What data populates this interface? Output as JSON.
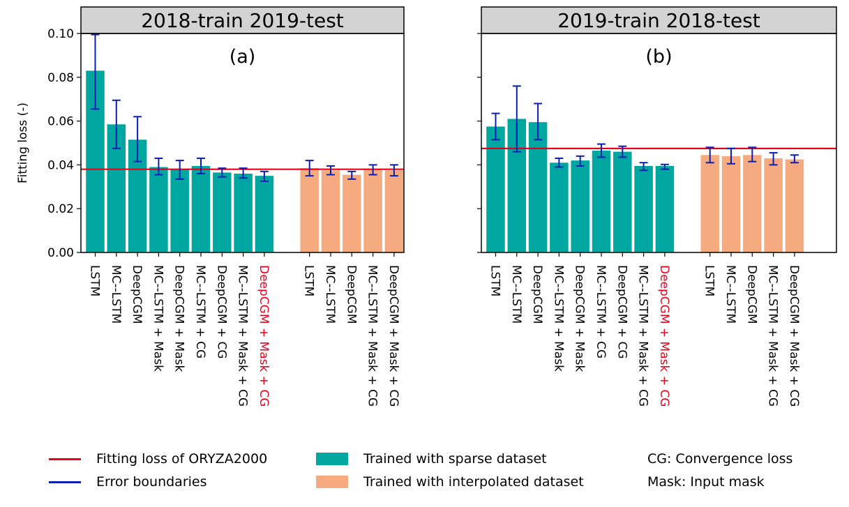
{
  "chart_data": [
    {
      "type": "bar",
      "panel_header": "2018-train 2019-test",
      "panel_label": "(a)",
      "ylabel": "Fitting loss (-)",
      "ylim": [
        0,
        0.1
      ],
      "yticks": [
        "0.00",
        "0.02",
        "0.04",
        "0.06",
        "0.08",
        "0.10"
      ],
      "reference_line": 0.038,
      "groups": [
        {
          "name": "Trained with sparse dataset",
          "categories": [
            "LSTM",
            "MC--LSTM",
            "DeepCGM",
            "MC--LSTM + Mask",
            "DeepCGM + Mask",
            "MC--LSTM + CG",
            "DeepCGM + CG",
            "MC--LSTM + Mask + CG",
            "DeepCGM + Mask + CG"
          ],
          "values": [
            0.083,
            0.0585,
            0.0515,
            0.039,
            0.038,
            0.0395,
            0.0365,
            0.036,
            0.035
          ],
          "err_low": [
            0.0655,
            0.0475,
            0.0415,
            0.0355,
            0.0335,
            0.036,
            0.0345,
            0.034,
            0.0325
          ],
          "err_high": [
            0.0995,
            0.0695,
            0.062,
            0.043,
            0.042,
            0.043,
            0.0385,
            0.0385,
            0.037
          ],
          "highlight": [
            false,
            false,
            false,
            false,
            false,
            false,
            false,
            false,
            true
          ]
        },
        {
          "name": "Trained with interpolated dataset",
          "categories": [
            "LSTM",
            "MC--LSTM",
            "DeepCGM",
            "MC--LSTM + Mask + CG",
            "DeepCGM + Mask + CG"
          ],
          "values": [
            0.0385,
            0.0375,
            0.0355,
            0.038,
            0.0375
          ],
          "err_low": [
            0.035,
            0.0355,
            0.0335,
            0.0355,
            0.035
          ],
          "err_high": [
            0.042,
            0.0395,
            0.037,
            0.04,
            0.04
          ],
          "highlight": [
            false,
            false,
            false,
            false,
            false
          ]
        }
      ]
    },
    {
      "type": "bar",
      "panel_header": "2019-train 2018-test",
      "panel_label": "(b)",
      "ylabel": "",
      "ylim": [
        0,
        0.1
      ],
      "yticks": [
        "",
        "",
        "",
        "",
        "",
        ""
      ],
      "reference_line": 0.0475,
      "groups": [
        {
          "name": "Trained with sparse dataset",
          "categories": [
            "LSTM",
            "MC--LSTM",
            "DeepCGM",
            "MC--LSTM + Mask",
            "DeepCGM + Mask",
            "MC--LSTM + CG",
            "DeepCGM + CG",
            "MC--LSTM + Mask + CG",
            "DeepCGM + Mask + CG"
          ],
          "values": [
            0.0575,
            0.061,
            0.0595,
            0.041,
            0.042,
            0.0465,
            0.046,
            0.0395,
            0.0395
          ],
          "err_low": [
            0.0515,
            0.046,
            0.0515,
            0.039,
            0.0395,
            0.0435,
            0.0435,
            0.0375,
            0.038
          ],
          "err_high": [
            0.0635,
            0.076,
            0.068,
            0.043,
            0.044,
            0.0495,
            0.0485,
            0.041,
            0.0402
          ],
          "highlight": [
            false,
            false,
            false,
            false,
            false,
            false,
            false,
            false,
            true
          ]
        },
        {
          "name": "Trained with interpolated dataset",
          "categories": [
            "LSTM",
            "MC--LSTM",
            "DeepCGM",
            "MC--LSTM + Mask + CG",
            "DeepCGM + Mask + CG"
          ],
          "values": [
            0.0445,
            0.044,
            0.0445,
            0.043,
            0.0425
          ],
          "err_low": [
            0.041,
            0.0405,
            0.0415,
            0.04,
            0.041
          ],
          "err_high": [
            0.048,
            0.0475,
            0.048,
            0.0455,
            0.0445
          ],
          "highlight": [
            false,
            false,
            false,
            false,
            false
          ]
        }
      ]
    }
  ],
  "colors": {
    "sparse": "#00a6a0",
    "interpolated": "#f5aa7f",
    "reference_line": "#e8001c",
    "error_bars": "#0a1eb4",
    "highlight_text": "#e8001c",
    "header_fill": "#d3d3d3"
  },
  "legend": {
    "ref_line": "Fitting loss of ORYZA2000",
    "error": "Error boundaries",
    "sparse": "Trained with sparse dataset",
    "interpolated": "Trained with interpolated dataset",
    "cg_note": "CG: Convergence loss",
    "mask_note": "Mask: Input mask"
  }
}
